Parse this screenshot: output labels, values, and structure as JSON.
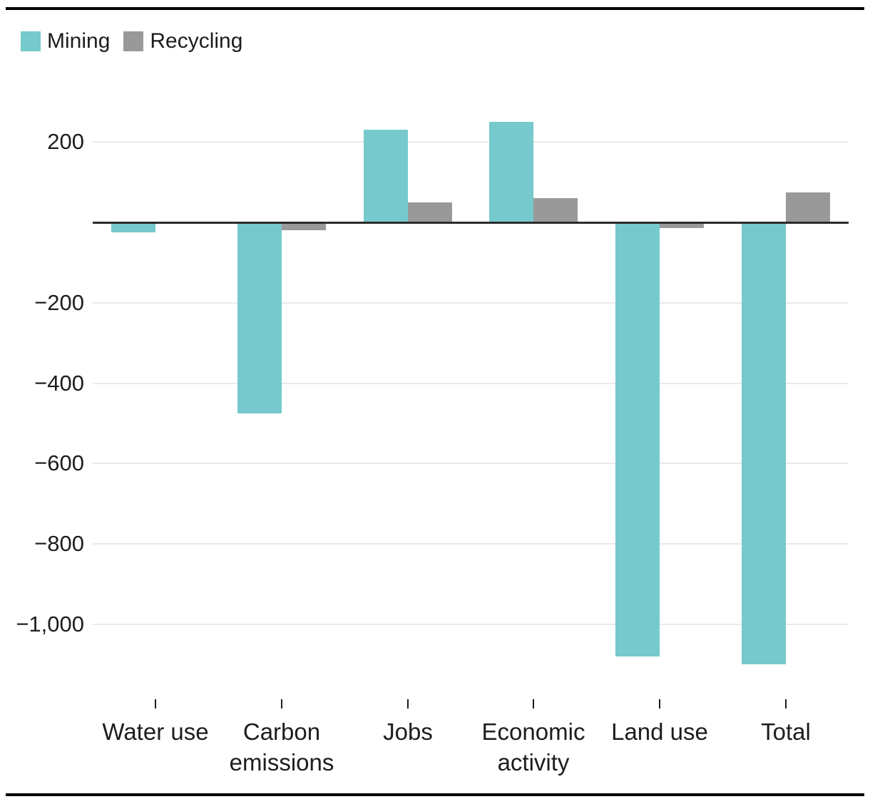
{
  "colors": {
    "background": "#ffffff",
    "rule": "#000000",
    "text": "#1d1d1d",
    "grid": "#e9e9e9",
    "zero_line": "#2b2b2b",
    "mining": "#76c9cd",
    "recycling": "#999999"
  },
  "legend": {
    "position": "top-left"
  },
  "chart_data": {
    "type": "bar",
    "title": "",
    "xlabel": "",
    "ylabel": "",
    "grid": true,
    "legend_position": "top-left",
    "categories": [
      "Water use",
      "Carbon emissions",
      "Jobs",
      "Economic activity",
      "Land use",
      "Total"
    ],
    "series": [
      {
        "name": "Mining",
        "color": "#76c9cd",
        "values": [
          -25,
          -475,
          230,
          250,
          -1080,
          -1100
        ]
      },
      {
        "name": "Recycling",
        "color": "#999999",
        "values": [
          0,
          -20,
          50,
          60,
          -15,
          75
        ]
      }
    ],
    "y_ticks": [
      {
        "value": 200,
        "label": "200"
      },
      {
        "value": -200,
        "label": "−200"
      },
      {
        "value": -400,
        "label": "−400"
      },
      {
        "value": -600,
        "label": "−600"
      },
      {
        "value": -800,
        "label": "−800"
      },
      {
        "value": -1000,
        "label": "−1,000"
      }
    ],
    "ylim": [
      -1180,
      305
    ]
  }
}
